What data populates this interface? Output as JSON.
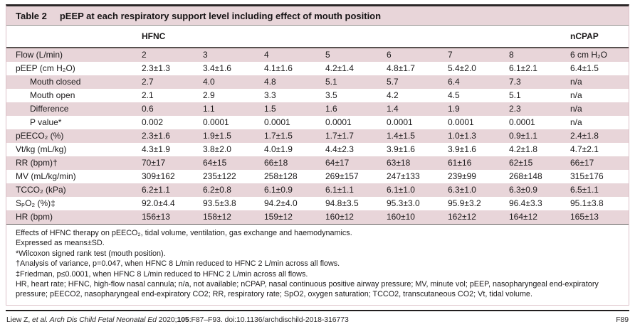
{
  "colors": {
    "row_shade": "#e8d5d9",
    "frame_pink": "#ddc1c8",
    "rule_black": "#2b2728"
  },
  "table": {
    "label": "Table 2",
    "caption": "pEEP at each respiratory support level including effect of mouth position",
    "groups": {
      "hfnc": "HFNC",
      "ncpap": "nCPAP"
    },
    "rows": [
      {
        "label": "Flow (L/min)",
        "indent": false,
        "shaded": true,
        "values": [
          "2",
          "3",
          "4",
          "5",
          "6",
          "7",
          "8",
          "6 cm H₂O"
        ]
      },
      {
        "label": "pEEP (cm H₂O)",
        "indent": false,
        "shaded": false,
        "values": [
          "2.3±1.3",
          "3.4±1.6",
          "4.1±1.6",
          "4.2±1.4",
          "4.8±1.7",
          "5.4±2.0",
          "6.1±2.1",
          "6.4±1.5"
        ]
      },
      {
        "label": "Mouth closed",
        "indent": true,
        "shaded": true,
        "values": [
          "2.7",
          "4.0",
          "4.8",
          "5.1",
          "5.7",
          "6.4",
          "7.3",
          "n/a"
        ]
      },
      {
        "label": "Mouth open",
        "indent": true,
        "shaded": false,
        "values": [
          "2.1",
          "2.9",
          "3.3",
          "3.5",
          "4.2",
          "4.5",
          "5.1",
          "n/a"
        ]
      },
      {
        "label": "Difference",
        "indent": true,
        "shaded": true,
        "values": [
          "0.6",
          "1.1",
          "1.5",
          "1.6",
          "1.4",
          "1.9",
          "2.3",
          "n/a"
        ]
      },
      {
        "label": "P value*",
        "indent": true,
        "shaded": false,
        "values": [
          "0.002",
          "0.0001",
          "0.0001",
          "0.0001",
          "0.0001",
          "0.0001",
          "0.0001",
          "n/a"
        ]
      },
      {
        "label": "pEECO₂ (%)",
        "indent": false,
        "shaded": true,
        "values": [
          "2.3±1.6",
          "1.9±1.5",
          "1.7±1.5",
          "1.7±1.7",
          "1.4±1.5",
          "1.0±1.3",
          "0.9±1.1",
          "2.4±1.8"
        ]
      },
      {
        "label": "Vt/kg (mL/kg)",
        "indent": false,
        "shaded": false,
        "values": [
          "4.3±1.9",
          "3.8±2.0",
          "4.0±1.9",
          "4.4±2.3",
          "3.9±1.6",
          "3.9±1.6",
          "4.2±1.8",
          "4.7±2.1"
        ]
      },
      {
        "label": "RR (bpm)†",
        "indent": false,
        "shaded": true,
        "values": [
          "70±17",
          "64±15",
          "66±18",
          "64±17",
          "63±18",
          "61±16",
          "62±15",
          "66±17"
        ]
      },
      {
        "label": "MV (mL/kg/min)",
        "indent": false,
        "shaded": false,
        "values": [
          "309±162",
          "235±122",
          "258±128",
          "269±157",
          "247±133",
          "239±99",
          "268±148",
          "315±176"
        ]
      },
      {
        "label": "TCCO₂ (kPa)",
        "indent": false,
        "shaded": true,
        "values": [
          "6.2±1.1",
          "6.2±0.8",
          "6.1±0.9",
          "6.1±1.1",
          "6.1±1.0",
          "6.3±1.0",
          "6.3±0.9",
          "6.5±1.1"
        ]
      },
      {
        "label": "SₚO₂ (%)‡",
        "indent": false,
        "shaded": false,
        "values": [
          "92.0±4.4",
          "93.5±3.8",
          "94.2±4.0",
          "94.8±3.5",
          "95.3±3.0",
          "95.9±3.2",
          "96.4±3.3",
          "95.1±3.8"
        ]
      },
      {
        "label": "HR (bpm)",
        "indent": false,
        "shaded": true,
        "values": [
          "156±13",
          "158±12",
          "159±12",
          "160±12",
          "160±10",
          "162±12",
          "164±12",
          "165±13"
        ]
      }
    ],
    "footnotes": [
      "Effects of HFNC therapy on pEECO₂, tidal volume, ventilation, gas exchange and haemodynamics.",
      "Expressed as means±SD.",
      "*Wilcoxon signed rank test (mouth position).",
      "†Analysis of variance, p=0.047, when HFNC 8 L/min reduced to HFNC 2 L/min across all flows.",
      "‡Friedman, p≤0.0001, when HFNC 8 L/min reduced to HFNC 2 L/min across all flows.",
      "HR, heart rate; HFNC, high-flow nasal cannula; n/a, not available; nCPAP, nasal continuous positive airway pressure; MV, minute vol; pEEP, nasopharyngeal end-expiratory pressure; pEECO2, nasopharyngeal end-expiratory CO2; RR, respiratory rate; SpO2, oxygen saturation; TCCO2, transcutaneous CO2; Vt, tidal volume."
    ]
  },
  "footer": {
    "citation": {
      "authors": "Liew Z, ",
      "etal": "et al. ",
      "journal": "Arch Dis Child Fetal Neonatal Ed ",
      "year": "2020;",
      "volume": "105",
      "rest": ":F87–F93. doi:10.1136/archdischild-2018-316773"
    },
    "page_number": "F89"
  }
}
